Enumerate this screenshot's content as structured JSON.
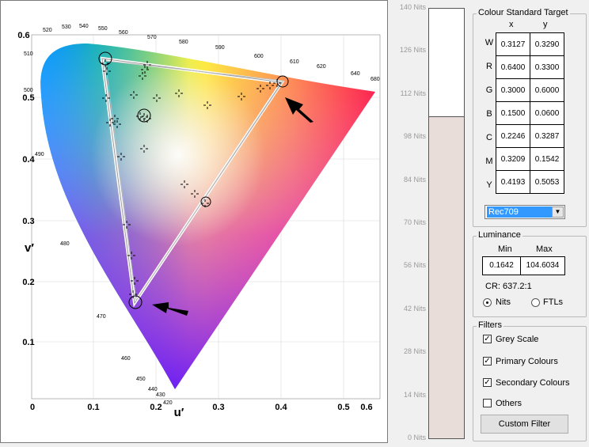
{
  "plot": {
    "yaxis_label": "v′",
    "xaxis_label": "u′",
    "y_ticks": [
      "0.6",
      "0.5",
      "0.4",
      "0.3",
      "0.2",
      "0.1"
    ],
    "x_ticks": [
      "0",
      "0.1",
      "0.2",
      "0.3",
      "0.4",
      "0.5",
      "0.6"
    ],
    "wavelengths": [
      "520",
      "530",
      "540",
      "550",
      "560",
      "570",
      "580",
      "590",
      "600",
      "610",
      "620",
      "640",
      "680",
      "510",
      "500",
      "490",
      "480",
      "470",
      "460",
      "450",
      "440",
      "430",
      "420"
    ]
  },
  "nits": {
    "labels": [
      "140 Nits",
      "126 Nits",
      "112 Nits",
      "98 Nits",
      "84 Nits",
      "70 Nits",
      "56 Nits",
      "42 Nits",
      "28 Nits",
      "14 Nits",
      "0 Nits"
    ],
    "level_fraction": 0.7473
  },
  "colour_standard": {
    "title": "Colour Standard Target",
    "col_x": "x",
    "col_y": "y",
    "rows": [
      {
        "label": "W",
        "x": "0.3127",
        "y": "0.3290"
      },
      {
        "label": "R",
        "x": "0.6400",
        "y": "0.3300"
      },
      {
        "label": "G",
        "x": "0.3000",
        "y": "0.6000"
      },
      {
        "label": "B",
        "x": "0.1500",
        "y": "0.0600"
      },
      {
        "label": "C",
        "x": "0.2246",
        "y": "0.3287"
      },
      {
        "label": "M",
        "x": "0.3209",
        "y": "0.1542"
      },
      {
        "label": "Y",
        "x": "0.4193",
        "y": "0.5053"
      }
    ],
    "standard": "Rec709"
  },
  "luminance": {
    "title": "Luminance",
    "min_label": "Min",
    "max_label": "Max",
    "min_value": "0.1642",
    "max_value": "104.6034",
    "cr": "CR: 637.2:1",
    "unit_nits": "Nits",
    "unit_ftl": "FTLs"
  },
  "filters": {
    "title": "Filters",
    "items": [
      {
        "label": "Grey Scale",
        "checked": "✓"
      },
      {
        "label": "Primary Colours",
        "checked": "✓"
      },
      {
        "label": "Secondary Colours",
        "checked": "✓"
      },
      {
        "label": "Others",
        "checked": ""
      }
    ],
    "button": "Custom Filter"
  }
}
